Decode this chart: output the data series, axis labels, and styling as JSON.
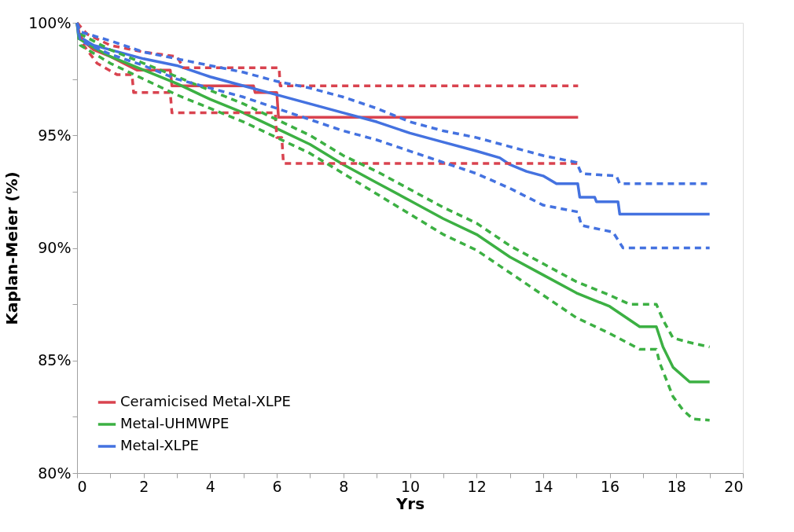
{
  "chart_data": {
    "type": "line",
    "xlabel": "Yrs",
    "ylabel": "Kaplan-Meier (%)",
    "xlim": [
      0,
      20
    ],
    "ylim": [
      80,
      100
    ],
    "xticks": [
      0,
      {
        "value": 1,
        "label": null
      },
      2,
      {
        "value": 3,
        "label": null
      },
      4,
      {
        "value": 5,
        "label": null
      },
      6,
      {
        "value": 7,
        "label": null
      },
      8,
      {
        "value": 9,
        "label": null
      },
      10,
      {
        "value": 11,
        "label": null
      },
      12,
      {
        "value": 13,
        "label": null
      },
      14,
      {
        "value": 15,
        "label": null
      },
      16,
      {
        "value": 17,
        "label": null
      },
      18,
      {
        "value": 19,
        "label": null
      },
      20
    ],
    "yticks": [
      {
        "value": 80,
        "label": "80%"
      },
      {
        "value": 82.5,
        "label": null
      },
      {
        "value": 85,
        "label": "85%"
      },
      {
        "value": 87.5,
        "label": null
      },
      {
        "value": 90,
        "label": "90%"
      },
      {
        "value": 92.5,
        "label": null
      },
      {
        "value": 95,
        "label": "95%"
      },
      {
        "value": 97.5,
        "label": null
      },
      {
        "value": 100,
        "label": "100%"
      }
    ],
    "grid": false,
    "legend": "bottom left",
    "series": [
      {
        "name": "Ceramicised Metal-XLPE",
        "color": "#d9434f",
        "line_style": "solid",
        "x": [
          0,
          0.1,
          0.5,
          1,
          1.8,
          2.8,
          2.85,
          5.3,
          5.35,
          6.0,
          6.05,
          15.05
        ],
        "values": [
          100,
          99.3,
          98.8,
          98.5,
          97.9,
          97.9,
          97.2,
          97.2,
          96.9,
          96.9,
          95.8,
          95.8
        ]
      },
      {
        "name": "Metal-UHMWPE",
        "color": "#3cb043",
        "line_style": "solid",
        "x": [
          0,
          0.05,
          0.5,
          1,
          2,
          3,
          4,
          5,
          6,
          7,
          8,
          9,
          10,
          11,
          12,
          13,
          14,
          15,
          16,
          16.9,
          17.4,
          17.6,
          17.9,
          18.4,
          19
        ],
        "values": [
          100,
          99.3,
          98.9,
          98.5,
          97.9,
          97.3,
          96.6,
          96.0,
          95.3,
          94.6,
          93.7,
          92.9,
          92.1,
          91.3,
          90.6,
          89.6,
          88.8,
          88.0,
          87.4,
          86.5,
          86.5,
          85.6,
          84.7,
          84.05,
          84.05
        ]
      },
      {
        "name": "Metal-XLPE",
        "color": "#4472e0",
        "line_style": "solid",
        "x": [
          0,
          0.05,
          0.5,
          1,
          2,
          3,
          4,
          5,
          6,
          7,
          8,
          9,
          10,
          11,
          12,
          12.7,
          13,
          13.5,
          14,
          14.4,
          15.04,
          15.1,
          15.55,
          15.6,
          16.25,
          16.3,
          19
        ],
        "values": [
          100,
          99.4,
          99.0,
          98.8,
          98.4,
          98.1,
          97.6,
          97.2,
          96.8,
          96.4,
          96.0,
          95.6,
          95.1,
          94.7,
          94.3,
          94.0,
          93.7,
          93.4,
          93.2,
          92.85,
          92.85,
          92.25,
          92.25,
          92.05,
          92.05,
          91.5,
          91.5
        ]
      },
      {
        "color": "#d9434f",
        "line_style": "dashed",
        "x": [
          0,
          0.3,
          1,
          2,
          3,
          3.2,
          6.07,
          6.1,
          15.05
        ],
        "values": [
          100,
          99.5,
          99.0,
          98.7,
          98.5,
          98.0,
          98.0,
          97.2,
          97.2
        ]
      },
      {
        "color": "#d9434f",
        "line_style": "dashed",
        "x": [
          0,
          0.2,
          0.6,
          1.2,
          1.65,
          1.7,
          2.8,
          2.85,
          5.95,
          6.0,
          6.15,
          6.2,
          15.05
        ],
        "values": [
          100,
          99.0,
          98.2,
          97.7,
          97.7,
          96.9,
          96.9,
          96.0,
          96.0,
          94.9,
          94.9,
          93.75,
          93.75
        ]
      },
      {
        "color": "#3cb043",
        "line_style": "dashed",
        "x": [
          0,
          0.1,
          1,
          2,
          3,
          4,
          5,
          6,
          7,
          8,
          9,
          10,
          11,
          12,
          13,
          14,
          15,
          16,
          16.6,
          17.4,
          17.6,
          17.9,
          18.4,
          19
        ],
        "values": [
          100,
          99.5,
          98.8,
          98.2,
          97.6,
          97.0,
          96.4,
          95.7,
          95.0,
          94.1,
          93.4,
          92.6,
          91.8,
          91.1,
          90.1,
          89.3,
          88.5,
          87.9,
          87.5,
          87.5,
          86.8,
          86.0,
          85.8,
          85.6
        ]
      },
      {
        "color": "#3cb043",
        "line_style": "dashed",
        "x": [
          0,
          0.1,
          1,
          2,
          3,
          4,
          5,
          6,
          7,
          8,
          9,
          10,
          11,
          12,
          13,
          14,
          15,
          16,
          16.9,
          17.4,
          17.5,
          17.9,
          18.2,
          18.5,
          19
        ],
        "values": [
          100,
          99.0,
          98.2,
          97.5,
          96.8,
          96.2,
          95.6,
          94.9,
          94.2,
          93.3,
          92.4,
          91.5,
          90.6,
          89.9,
          88.9,
          87.9,
          86.9,
          86.2,
          85.5,
          85.5,
          84.9,
          83.4,
          82.8,
          82.4,
          82.35
        ]
      },
      {
        "color": "#4472e0",
        "line_style": "dashed",
        "x": [
          0,
          0.1,
          1,
          2,
          3,
          4,
          5,
          6,
          7,
          8,
          9,
          10,
          11,
          12,
          13,
          14,
          15,
          15.15,
          16.2,
          16.3,
          19
        ],
        "values": [
          100,
          99.6,
          99.2,
          98.7,
          98.4,
          98.1,
          97.8,
          97.4,
          97.1,
          96.7,
          96.2,
          95.6,
          95.2,
          94.9,
          94.5,
          94.1,
          93.8,
          93.3,
          93.2,
          92.85,
          92.85
        ]
      },
      {
        "color": "#4472e0",
        "line_style": "dashed",
        "x": [
          0,
          0.1,
          1,
          2,
          3,
          4,
          5,
          6,
          7,
          8,
          9,
          10,
          11,
          12,
          13,
          14,
          15.04,
          15.15,
          16.1,
          16.4,
          19
        ],
        "values": [
          100,
          99.2,
          98.6,
          98.1,
          97.5,
          97.1,
          96.7,
          96.2,
          95.7,
          95.2,
          94.8,
          94.3,
          93.8,
          93.3,
          92.65,
          91.9,
          91.6,
          91.0,
          90.7,
          90.0,
          90.0
        ]
      }
    ]
  }
}
